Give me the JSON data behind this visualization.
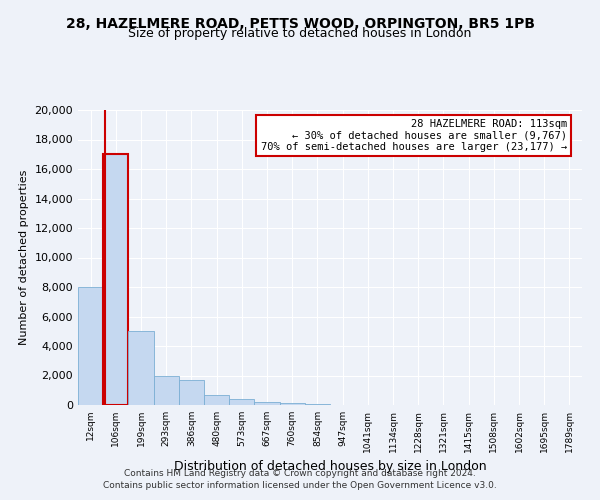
{
  "title1": "28, HAZELMERE ROAD, PETTS WOOD, ORPINGTON, BR5 1PB",
  "title2": "Size of property relative to detached houses in London",
  "xlabel": "Distribution of detached houses by size in London",
  "ylabel": "Number of detached properties",
  "annotation_line1": "28 HAZELMERE ROAD: 113sqm",
  "annotation_line2": "← 30% of detached houses are smaller (9,767)",
  "annotation_line3": "70% of semi-detached houses are larger (23,177) →",
  "property_size_sqm": 113,
  "footer1": "Contains HM Land Registry data © Crown copyright and database right 2024.",
  "footer2": "Contains public sector information licensed under the Open Government Licence v3.0.",
  "bin_labels": [
    "12sqm",
    "106sqm",
    "199sqm",
    "293sqm",
    "386sqm",
    "480sqm",
    "573sqm",
    "667sqm",
    "760sqm",
    "854sqm",
    "947sqm",
    "1041sqm",
    "1134sqm",
    "1228sqm",
    "1321sqm",
    "1415sqm",
    "1508sqm",
    "1602sqm",
    "1695sqm",
    "1789sqm"
  ],
  "bin_edges": [
    12,
    106,
    199,
    293,
    386,
    480,
    573,
    667,
    760,
    854,
    947,
    1041,
    1134,
    1228,
    1321,
    1415,
    1508,
    1602,
    1695,
    1789,
    1882
  ],
  "bar_heights": [
    8000,
    17000,
    5000,
    2000,
    1700,
    700,
    400,
    200,
    150,
    100,
    0,
    0,
    0,
    0,
    0,
    0,
    0,
    0,
    0,
    0
  ],
  "bar_color": "#c5d8f0",
  "bar_edge_color": "#7bafd4",
  "highlight_color": "#cc0000",
  "highlight_bin_index": 1,
  "ylim": [
    0,
    20000
  ],
  "yticks": [
    0,
    2000,
    4000,
    6000,
    8000,
    10000,
    12000,
    14000,
    16000,
    18000,
    20000
  ],
  "background_color": "#eef2f9",
  "grid_color": "#ffffff",
  "annotation_box_color": "#ffffff",
  "annotation_box_edge_color": "#cc0000"
}
